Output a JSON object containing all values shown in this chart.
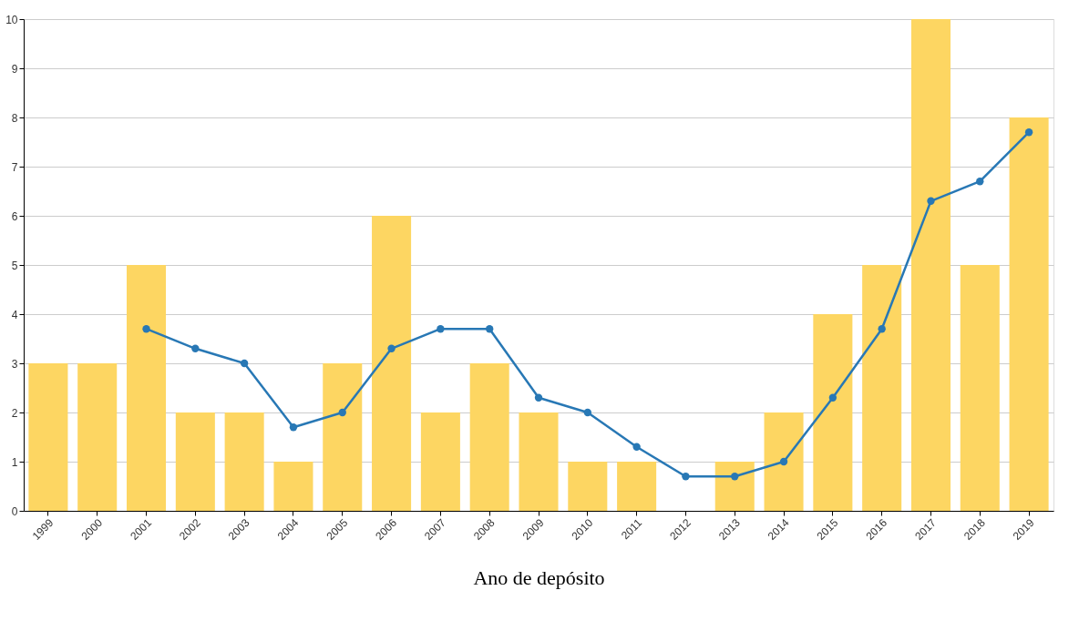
{
  "chart_data": {
    "type": "bar",
    "xlabel": "Ano de depósito",
    "categories": [
      "1999",
      "2000",
      "2001",
      "2002",
      "2003",
      "2004",
      "2005",
      "2006",
      "2007",
      "2008",
      "2009",
      "2010",
      "2011",
      "2012",
      "2013",
      "2014",
      "2015",
      "2016",
      "2017",
      "2018",
      "2019"
    ],
    "series": [
      {
        "color": "#fdd662",
        "values": [
          3,
          3,
          5,
          2,
          2,
          1,
          3,
          6,
          2,
          3,
          2,
          1,
          1,
          0,
          1,
          2,
          4,
          5,
          10,
          5,
          8
        ]
      },
      {
        "type": "line",
        "color": "#2878b5",
        "marker": "circle",
        "values": [
          null,
          null,
          3.7,
          3.3,
          3,
          1.7,
          2,
          3.3,
          3.7,
          3.7,
          2.3,
          2,
          1.3,
          0.7,
          0.7,
          1,
          2.3,
          3.7,
          6.3,
          6.7,
          7.7
        ]
      }
    ],
    "ylim": [
      0,
      10
    ],
    "yticks": [
      0,
      1,
      2,
      3,
      4,
      5,
      6,
      7,
      8,
      9,
      10
    ],
    "grid": "y"
  }
}
